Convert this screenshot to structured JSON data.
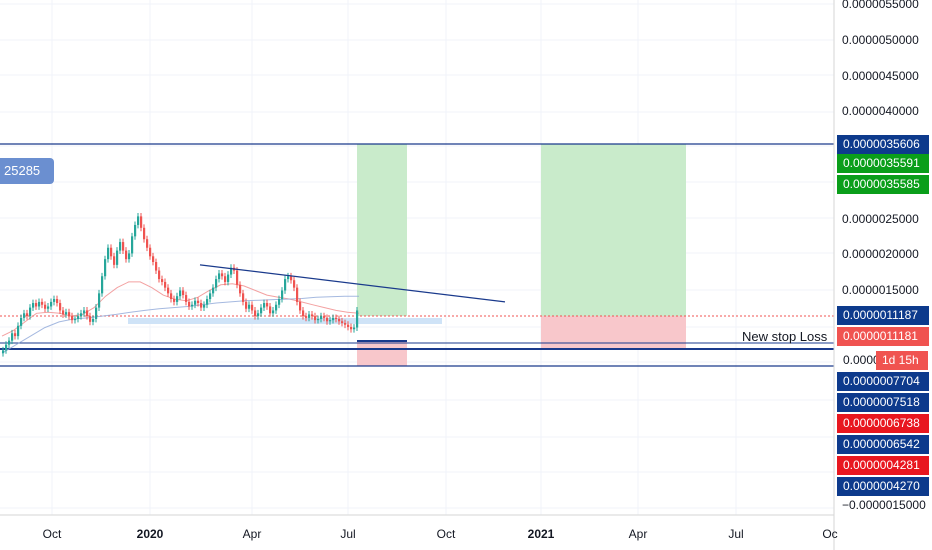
{
  "chart_data": {
    "type": "line",
    "price_axis_ticks": [
      {
        "label": "0.0000055000",
        "value": 5.5
      },
      {
        "label": "0.0000050000",
        "value": 5.0
      },
      {
        "label": "0.0000045000",
        "value": 4.5
      },
      {
        "label": "0.0000040000",
        "value": 4.0
      },
      {
        "label": "0.0000025000",
        "value": 2.5
      },
      {
        "label": "0.0000020000",
        "value": 2.0
      },
      {
        "label": "0.0000015000",
        "value": 1.5
      },
      {
        "label": "−0.0000015000",
        "value": -1.5
      }
    ],
    "time_axis_ticks": [
      {
        "label": "Oct",
        "bold": false
      },
      {
        "label": "2020",
        "bold": true
      },
      {
        "label": "Apr",
        "bold": false
      },
      {
        "label": "Jul",
        "bold": false
      },
      {
        "label": "Oct",
        "bold": false
      },
      {
        "label": "2021",
        "bold": true
      },
      {
        "label": "Apr",
        "bold": false
      },
      {
        "label": "Jul",
        "bold": false
      },
      {
        "label": "Oc",
        "bold": false
      }
    ],
    "price_labels": [
      {
        "text": "0.0000035606",
        "color": "#0d3a8c"
      },
      {
        "text": "0.0000035591",
        "color": "#0a9e1a"
      },
      {
        "text": "0.0000035585",
        "color": "#0a9e1a"
      },
      {
        "text": "0.0000011187",
        "color": "#0d3a8c"
      },
      {
        "text": "0.0000011181",
        "color": "#f05350"
      },
      {
        "text": "0.0000",
        "color": "#ffffff"
      },
      {
        "text": "0.0000007704",
        "color": "#0d3a8c"
      },
      {
        "text": "0.0000007518",
        "color": "#0d3a8c"
      },
      {
        "text": "0.0000006738",
        "color": "#e8171f"
      },
      {
        "text": "0.0000006542",
        "color": "#0d3a8c"
      },
      {
        "text": "0.0000004281",
        "color": "#e8171f"
      },
      {
        "text": "0.0000004270",
        "color": "#0d3a8c"
      }
    ],
    "candles_close": [
      0.45,
      0.55,
      0.62,
      0.75,
      0.7,
      0.88,
      1.02,
      1.1,
      1.05,
      1.2,
      1.28,
      1.22,
      1.3,
      1.25,
      1.18,
      1.22,
      1.3,
      1.35,
      1.28,
      1.15,
      1.08,
      1.12,
      1.05,
      0.98,
      1.0,
      1.05,
      1.1,
      1.15,
      1.05,
      0.95,
      1.0,
      1.2,
      1.45,
      1.75,
      2.05,
      2.25,
      2.1,
      1.95,
      2.2,
      2.35,
      2.2,
      2.05,
      2.15,
      2.45,
      2.65,
      2.8,
      2.6,
      2.4,
      2.25,
      2.1,
      2.0,
      1.85,
      1.7,
      1.65,
      1.55,
      1.45,
      1.35,
      1.3,
      1.4,
      1.5,
      1.42,
      1.3,
      1.22,
      1.25,
      1.32,
      1.28,
      1.2,
      1.25,
      1.35,
      1.45,
      1.55,
      1.7,
      1.8,
      1.75,
      1.65,
      1.78,
      1.9,
      1.85,
      1.6,
      1.45,
      1.3,
      1.18,
      1.25,
      1.15,
      1.05,
      1.1,
      1.2,
      1.28,
      1.22,
      1.1,
      1.15,
      1.25,
      1.35,
      1.5,
      1.7,
      1.75,
      1.68,
      1.55,
      1.3,
      1.15,
      1.05,
      1.02,
      1.08,
      1.05,
      0.98,
      1.0,
      1.05,
      1.02,
      0.96,
      0.98,
      1.02,
      1.0,
      0.96,
      0.93,
      0.9,
      0.86,
      0.82,
      0.85,
      1.15
    ],
    "ma_red": [
      0.7,
      0.8,
      0.95,
      1.1,
      1.12,
      1.1,
      1.05,
      1.08,
      1.2,
      1.4,
      1.55,
      1.65,
      1.65,
      1.55,
      1.42,
      1.35,
      1.32,
      1.38,
      1.5,
      1.6,
      1.62,
      1.58,
      1.5,
      1.42,
      1.38,
      1.35,
      1.3,
      1.25,
      1.2,
      1.15,
      1.12,
      1.1
    ],
    "ma_blue": [
      0.4,
      0.55,
      0.7,
      0.85,
      0.95,
      1.0,
      1.02,
      1.05,
      1.08,
      1.12,
      1.15,
      1.18,
      1.2,
      1.22,
      1.25,
      1.28,
      1.3,
      1.32,
      1.33,
      1.34,
      1.35,
      1.36,
      1.38,
      1.39,
      1.4,
      1.4
    ],
    "downtrend_line": {
      "start": [
        200,
        1.95
      ],
      "end": [
        505,
        1.3
      ]
    },
    "horizontal_levels": [
      3.5606,
      1.1187,
      0.7704,
      0.7518,
      0.427
    ],
    "left_badge": "25285",
    "annotation": "New stop Loss",
    "countdown": "1d 15h"
  }
}
